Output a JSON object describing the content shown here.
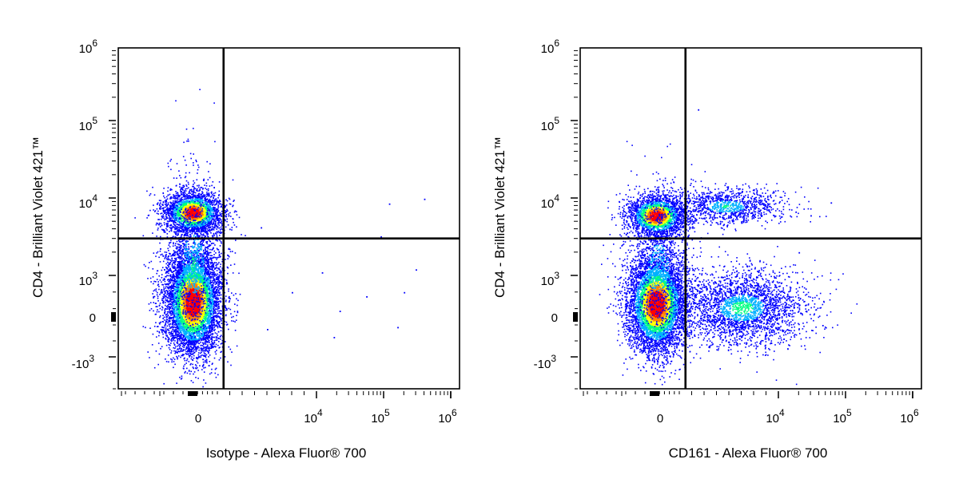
{
  "chart_data": [
    {
      "type": "scatter",
      "subtype": "flow-cytometry-density-dot-plot",
      "xlabel": "Isotype - Alexa Fluor® 700",
      "ylabel": "CD4 - Brilliant Violet 421™",
      "x_scale": "biexponential",
      "y_scale": "biexponential",
      "x_ticks": [
        "0",
        "10^4",
        "10^5",
        "10^6"
      ],
      "y_ticks": [
        "-10^3",
        "0",
        "10^3",
        "10^4",
        "10^5",
        "10^6"
      ],
      "gates": {
        "x_threshold": 2500,
        "y_threshold": 3000
      },
      "density_colors": [
        "#0000ff",
        "#00b0ff",
        "#00ff80",
        "#ffff00",
        "#ff8000",
        "#ff0000"
      ],
      "populations": [
        {
          "name": "",
          "x_center": 0,
          "y_center": 6000,
          "relative_size": 0.35
        },
        {
          "name": "",
          "x_center": 0,
          "y_center": 200,
          "relative_size": 0.65
        }
      ],
      "outliers_x": [
        8000,
        12000,
        22000,
        55000,
        90000,
        120000,
        200000,
        300000,
        400000
      ]
    },
    {
      "type": "scatter",
      "subtype": "flow-cytometry-density-dot-plot",
      "xlabel": "CD161 - Alexa Fluor® 700",
      "ylabel": "CD4 - Brilliant Violet 421™",
      "x_scale": "biexponential",
      "y_scale": "biexponential",
      "x_ticks": [
        "0",
        "10^4",
        "10^5",
        "10^6"
      ],
      "y_ticks": [
        "-10^3",
        "0",
        "10^3",
        "10^4",
        "10^5",
        "10^6"
      ],
      "gates": {
        "x_threshold": 2500,
        "y_threshold": 3000
      },
      "density_colors": [
        "#0000ff",
        "#00b0ff",
        "#00ff80",
        "#ffff00",
        "#ff8000",
        "#ff0000"
      ],
      "populations": [
        {
          "name": "",
          "x_center": 0,
          "y_center": 5000,
          "relative_size": 0.28
        },
        {
          "name": "",
          "x_center": 6000,
          "y_center": 7000,
          "relative_size": 0.08
        },
        {
          "name": "",
          "x_center": 0,
          "y_center": 200,
          "relative_size": 0.5
        },
        {
          "name": "",
          "x_center": 7000,
          "y_center": 300,
          "relative_size": 0.14
        }
      ]
    }
  ]
}
